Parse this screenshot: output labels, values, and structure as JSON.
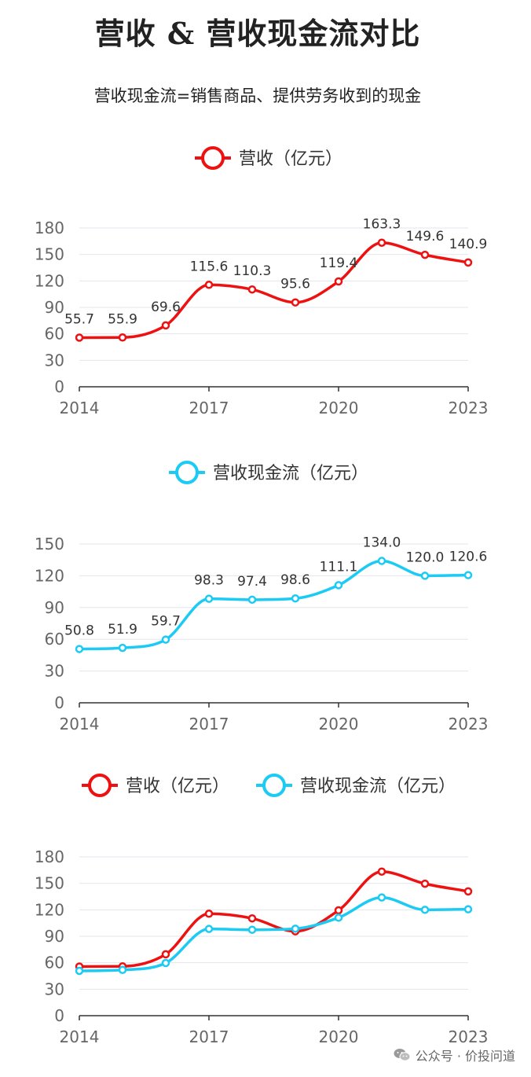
{
  "title": "营收 & 营收现金流对比",
  "subtitle": "营收现金流=销售商品、提供劳务收到的现金",
  "watermark": "公众号 · 价投问道",
  "colors": {
    "revenue": "#ee1111",
    "cashflow": "#1ccbf4"
  },
  "chart_data": [
    {
      "type": "line",
      "x": [
        2014,
        2015,
        2016,
        2017,
        2018,
        2019,
        2020,
        2021,
        2022,
        2023
      ],
      "x_ticks": [
        "2014",
        "2017",
        "2020",
        "2023"
      ],
      "series": [
        {
          "name": "营收（亿元）",
          "color": "#ee1111",
          "values": [
            55.7,
            55.9,
            69.6,
            115.6,
            110.3,
            95.6,
            119.4,
            163.3,
            149.6,
            140.9
          ],
          "labels": [
            "55.7",
            "55.9",
            "69.6",
            "115.6",
            "110.3",
            "95.6",
            "119.4",
            "163.3",
            "149.6",
            "140.9"
          ]
        }
      ],
      "ylim": [
        0,
        180
      ],
      "y_ticks": [
        "0",
        "30",
        "60",
        "90",
        "120",
        "150",
        "180"
      ],
      "legend": "top-center",
      "grid": true,
      "smooth": true
    },
    {
      "type": "line",
      "x": [
        2014,
        2015,
        2016,
        2017,
        2018,
        2019,
        2020,
        2021,
        2022,
        2023
      ],
      "x_ticks": [
        "2014",
        "2017",
        "2020",
        "2023"
      ],
      "series": [
        {
          "name": "营收现金流（亿元）",
          "color": "#1ccbf4",
          "values": [
            50.8,
            51.9,
            59.7,
            98.3,
            97.4,
            98.6,
            111.1,
            134.0,
            120.0,
            120.6
          ],
          "labels": [
            "50.8",
            "51.9",
            "59.7",
            "98.3",
            "97.4",
            "98.6",
            "111.1",
            "134.0",
            "120.0",
            "120.6"
          ]
        }
      ],
      "ylim": [
        0,
        150
      ],
      "y_ticks": [
        "0",
        "30",
        "60",
        "90",
        "120",
        "150"
      ],
      "legend": "top-center",
      "grid": true,
      "smooth": true
    },
    {
      "type": "line",
      "x": [
        2014,
        2015,
        2016,
        2017,
        2018,
        2019,
        2020,
        2021,
        2022,
        2023
      ],
      "x_ticks": [
        "2014",
        "2017",
        "2020",
        "2023"
      ],
      "series": [
        {
          "name": "营收（亿元）",
          "color": "#ee1111",
          "values": [
            55.7,
            55.9,
            69.6,
            115.6,
            110.3,
            95.6,
            119.4,
            163.3,
            149.6,
            140.9
          ]
        },
        {
          "name": "营收现金流（亿元）",
          "color": "#1ccbf4",
          "values": [
            50.8,
            51.9,
            59.7,
            98.3,
            97.4,
            98.6,
            111.1,
            134.0,
            120.0,
            120.6
          ]
        }
      ],
      "ylim": [
        0,
        180
      ],
      "y_ticks": [
        "0",
        "30",
        "60",
        "90",
        "120",
        "150",
        "180"
      ],
      "legend": "top-center",
      "grid": true,
      "smooth": true
    }
  ]
}
